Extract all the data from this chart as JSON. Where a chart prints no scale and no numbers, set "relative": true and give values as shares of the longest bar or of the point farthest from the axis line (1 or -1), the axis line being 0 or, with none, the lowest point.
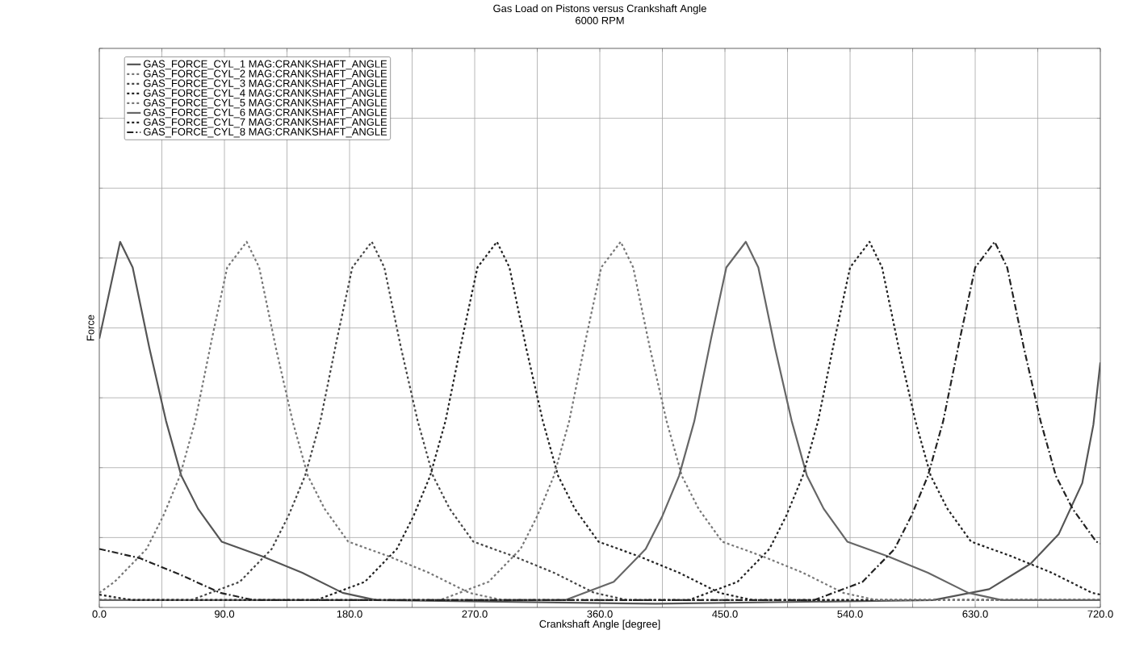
{
  "chart_data": {
    "type": "line",
    "title": "Gas Load on Pistons versus Crankshaft Angle",
    "subtitle": "6000 RPM",
    "xlabel": "Crankshaft Angle [degree]",
    "ylabel": "Force",
    "relative": true,
    "grid": true,
    "legend": "top left",
    "marker": "none",
    "xlim": [
      0,
      720
    ],
    "xticks": [
      {
        "value": 0,
        "label": "0.0"
      },
      {
        "value": 45,
        "label": null
      },
      {
        "value": 90,
        "label": "90.0"
      },
      {
        "value": 135,
        "label": null
      },
      {
        "value": 180,
        "label": "180.0"
      },
      {
        "value": 225,
        "label": null
      },
      {
        "value": 270,
        "label": "270.0"
      },
      {
        "value": 315,
        "label": null
      },
      {
        "value": 360,
        "label": "360.0"
      },
      {
        "value": 405,
        "label": null
      },
      {
        "value": 450,
        "label": "450.0"
      },
      {
        "value": 495,
        "label": null
      },
      {
        "value": 540,
        "label": "540.0"
      },
      {
        "value": 585,
        "label": null
      },
      {
        "value": 630,
        "label": "630.0"
      },
      {
        "value": 675,
        "label": null
      },
      {
        "value": 720,
        "label": "720.0"
      }
    ],
    "series": [
      {
        "name": "GAS_FORCE_CYL_1  MAG:CRANKSHAFT_ANGLE",
        "color": "#555555",
        "line_style": "solid",
        "x": [
          0,
          15,
          24,
          36,
          48,
          59,
          71,
          88,
          117,
          146,
          175,
          199,
          400,
          600,
          640,
          670,
          690,
          707,
          715,
          720
        ],
        "values": [
          0.735,
          1,
          0.93,
          0.71,
          0.51,
          0.36,
          0.27,
          0.18,
          0.14,
          0.095,
          0.04,
          0.02,
          0.01,
          0.02,
          0.05,
          0.12,
          0.2,
          0.34,
          0.5,
          0.67
        ]
      },
      {
        "name": "GAS_FORCE_CYL_2  MAG:CRANKSHAFT_ANGLE",
        "color": "#777777",
        "line_style": "dashed",
        "x": [
          0,
          11,
          34,
          46,
          58,
          69,
          81,
          92,
          106,
          115,
          127,
          139,
          150,
          162,
          179,
          208,
          237,
          266,
          290,
          720
        ],
        "values": [
          0.04,
          0.07,
          0.16,
          0.25,
          0.36,
          0.51,
          0.735,
          0.93,
          1,
          0.93,
          0.71,
          0.51,
          0.36,
          0.27,
          0.18,
          0.14,
          0.095,
          0.04,
          0.02,
          0.02
        ]
      },
      {
        "name": "GAS_FORCE_CYL_3  MAG:CRANKSHAFT_ANGLE",
        "color": "#444444",
        "line_style": "dashed",
        "x": [
          0,
          66,
          101,
          124,
          136,
          148,
          159,
          171,
          182,
          196,
          205,
          217,
          229,
          240,
          252,
          269,
          298,
          327,
          356,
          380,
          720
        ],
        "values": [
          0.02,
          0.02,
          0.07,
          0.16,
          0.25,
          0.36,
          0.51,
          0.735,
          0.93,
          1,
          0.93,
          0.71,
          0.51,
          0.36,
          0.27,
          0.18,
          0.14,
          0.095,
          0.04,
          0.02,
          0.02
        ]
      },
      {
        "name": "GAS_FORCE_CYL_4  MAG:CRANKSHAFT_ANGLE",
        "color": "#222222",
        "line_style": "dashed",
        "x": [
          0,
          156,
          191,
          214,
          226,
          238,
          249,
          261,
          272,
          286,
          295,
          307,
          319,
          330,
          342,
          359,
          388,
          417,
          446,
          470,
          720
        ],
        "values": [
          0.02,
          0.02,
          0.07,
          0.16,
          0.25,
          0.36,
          0.51,
          0.735,
          0.93,
          1,
          0.93,
          0.71,
          0.51,
          0.36,
          0.27,
          0.18,
          0.14,
          0.095,
          0.04,
          0.02,
          0.02
        ]
      },
      {
        "name": "GAS_FORCE_CYL_5  MAG:CRANKSHAFT_ANGLE",
        "color": "#777777",
        "line_style": "dashed",
        "x": [
          0,
          245,
          280,
          303,
          315,
          327,
          338,
          350,
          361,
          375,
          384,
          396,
          408,
          419,
          431,
          448,
          477,
          506,
          535,
          559,
          720
        ],
        "values": [
          0.02,
          0.02,
          0.07,
          0.16,
          0.25,
          0.36,
          0.51,
          0.735,
          0.93,
          1,
          0.93,
          0.71,
          0.51,
          0.36,
          0.27,
          0.18,
          0.14,
          0.095,
          0.04,
          0.02,
          0.02
        ]
      },
      {
        "name": "GAS_FORCE_CYL_6  MAG:CRANKSHAFT_ANGLE",
        "color": "#666666",
        "line_style": "solid",
        "x": [
          0,
          335,
          370,
          393,
          405,
          417,
          428,
          440,
          451,
          465,
          474,
          486,
          498,
          509,
          521,
          538,
          567,
          596,
          625,
          649,
          720
        ],
        "values": [
          0.02,
          0.02,
          0.07,
          0.16,
          0.25,
          0.36,
          0.51,
          0.735,
          0.93,
          1,
          0.93,
          0.71,
          0.51,
          0.36,
          0.27,
          0.18,
          0.14,
          0.095,
          0.04,
          0.02,
          0.02
        ]
      },
      {
        "name": "GAS_FORCE_CYL_7  MAG:CRANKSHAFT_ANGLE",
        "color": "#222222",
        "line_style": "dashed",
        "x": [
          0,
          24,
          424,
          459,
          482,
          494,
          506,
          517,
          529,
          540,
          554,
          563,
          575,
          587,
          598,
          610,
          627,
          656,
          685,
          714,
          720
        ],
        "values": [
          0.035,
          0.02,
          0.02,
          0.07,
          0.16,
          0.25,
          0.36,
          0.51,
          0.735,
          0.93,
          1,
          0.93,
          0.71,
          0.51,
          0.36,
          0.27,
          0.18,
          0.14,
          0.095,
          0.04,
          0.035
        ]
      },
      {
        "name": "GAS_FORCE_CYL_8  MAG:CRANKSHAFT_ANGLE",
        "color": "#222222",
        "line_style": "dotted",
        "x": [
          0,
          29,
          58,
          87,
          111,
          514,
          549,
          572,
          584,
          596,
          607,
          619,
          630,
          644,
          653,
          665,
          677,
          688,
          700,
          717,
          720
        ],
        "values": [
          0.16,
          0.135,
          0.09,
          0.04,
          0.02,
          0.02,
          0.07,
          0.16,
          0.25,
          0.36,
          0.51,
          0.735,
          0.93,
          1,
          0.93,
          0.71,
          0.51,
          0.36,
          0.27,
          0.18,
          0.175
        ]
      }
    ]
  }
}
